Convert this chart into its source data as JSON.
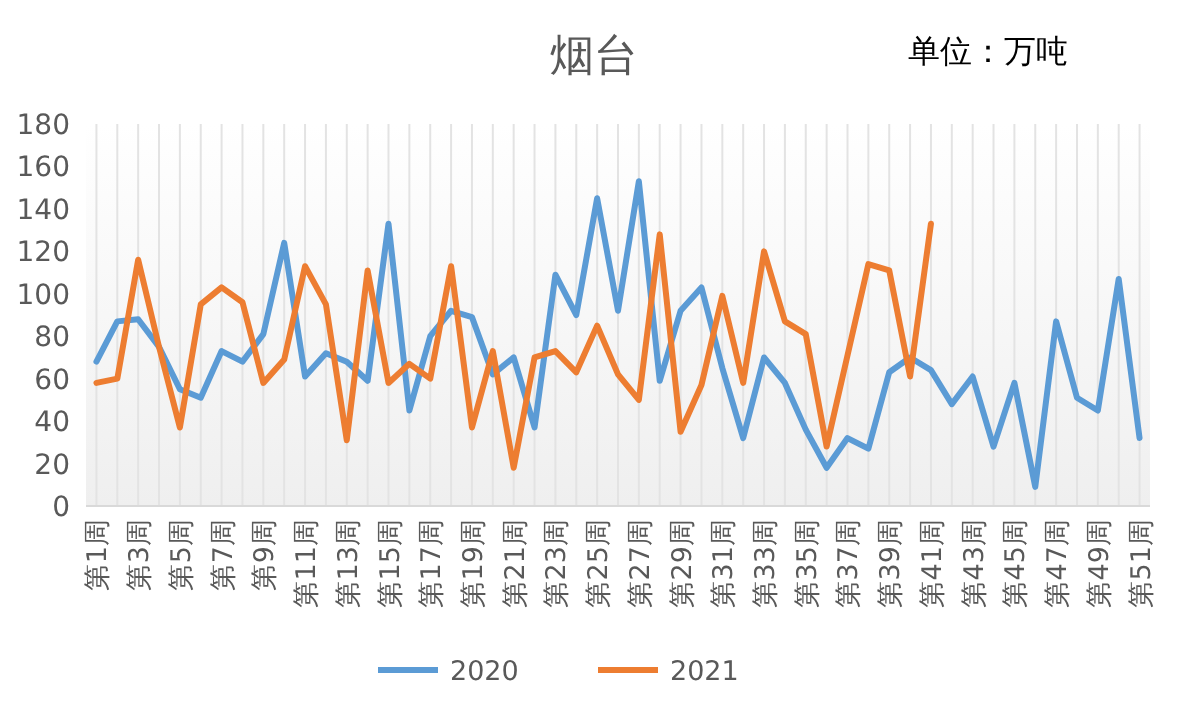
{
  "chart_data": {
    "type": "line",
    "title": "烟台",
    "annotations": [
      "单位：万吨"
    ],
    "categories": [
      "第1周",
      null,
      "第3周",
      null,
      "第5周",
      null,
      "第7周",
      null,
      "第9周",
      null,
      "第11周",
      null,
      "第13周",
      null,
      "第15周",
      null,
      "第17周",
      null,
      "第19周",
      null,
      "第21周",
      null,
      "第23周",
      null,
      "第25周",
      null,
      "第27周",
      null,
      "第29周",
      null,
      "第31周",
      null,
      "第33周",
      null,
      "第35周",
      null,
      "第37周",
      null,
      "第39周",
      null,
      "第41周",
      null,
      "第43周",
      null,
      "第45周",
      null,
      "第47周",
      null,
      "第49周",
      null,
      "第51周"
    ],
    "series": [
      {
        "name": "2020",
        "color": "#5b9bd5",
        "values": [
          68,
          87,
          88,
          75,
          55,
          51,
          73,
          68,
          81,
          124,
          61,
          72,
          68,
          59,
          133,
          45,
          80,
          92,
          89,
          62,
          70,
          37,
          109,
          90,
          145,
          92,
          153,
          59,
          92,
          103,
          65,
          32,
          70,
          58,
          36,
          18,
          32,
          27,
          63,
          70,
          64,
          48,
          61,
          28,
          58,
          9,
          87,
          51,
          45,
          107,
          32
        ]
      },
      {
        "name": "2021",
        "color": "#ed7d31",
        "values": [
          58,
          60,
          116,
          75,
          37,
          95,
          103,
          96,
          58,
          69,
          113,
          95,
          31,
          111,
          58,
          67,
          60,
          113,
          37,
          73,
          18,
          70,
          73,
          63,
          85,
          62,
          50,
          128,
          35,
          57,
          99,
          58,
          120,
          87,
          81,
          28,
          71,
          114,
          111,
          61,
          133,
          null,
          null,
          null,
          null,
          null,
          null,
          null,
          null,
          null,
          null
        ]
      }
    ],
    "ylim": [
      0,
      180
    ],
    "yticks": [
      0,
      20,
      40,
      60,
      80,
      100,
      120,
      140,
      160,
      180
    ],
    "grid": "x",
    "legend": "bottom",
    "line_style": "solid",
    "marker": "none"
  }
}
